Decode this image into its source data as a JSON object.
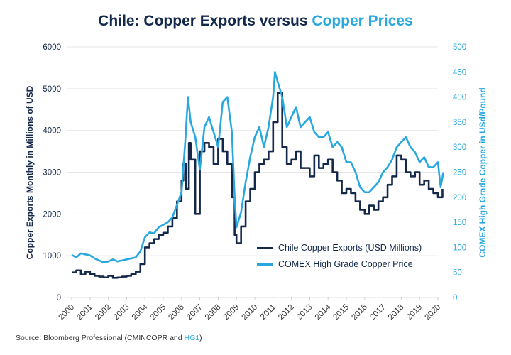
{
  "title": {
    "main": "Chile: Copper Exports versus ",
    "accent": "Copper Prices"
  },
  "source": {
    "prefix": "Source: Bloomberg Professional (CMINCOPR and ",
    "highlight": "HG1",
    "suffix": ")"
  },
  "colors": {
    "exports": "#14284b",
    "price": "#29a8e0",
    "grid": "#e6e6e6",
    "left_axis_text": "#14284b",
    "right_axis_text": "#29a8e0"
  },
  "chart_data": {
    "type": "line",
    "title": "Chile: Copper Exports versus Copper Prices",
    "xlabel": "",
    "ylabel_left": "Copper Exports Monthly in Millions of USD",
    "ylabel_right": "COMEX High Grade Copper in USd/Pound",
    "xlim": [
      2000,
      2020.3
    ],
    "ylim_left": [
      0,
      6000
    ],
    "ylim_right": [
      0,
      500
    ],
    "x_ticks": [
      "2000",
      "2001",
      "2002",
      "2003",
      "2004",
      "2005",
      "2006",
      "2007",
      "2008",
      "2009",
      "2010",
      "2011",
      "2012",
      "2013",
      "2014",
      "2015",
      "2016",
      "2017",
      "2018",
      "2019",
      "2020"
    ],
    "y_ticks_left": [
      "0",
      "1000",
      "2000",
      "3000",
      "4000",
      "5000",
      "6000"
    ],
    "y_ticks_right": [
      "0",
      "50",
      "100",
      "150",
      "200",
      "250",
      "300",
      "350",
      "400",
      "450",
      "500"
    ],
    "grid": true,
    "legend": "center-right",
    "series": [
      {
        "name": "Chile Copper Exports (USD Millions)",
        "axis": "left",
        "step": true,
        "x": [
          2000.0,
          2000.25,
          2000.5,
          2000.75,
          2001.0,
          2001.25,
          2001.5,
          2001.75,
          2002.0,
          2002.25,
          2002.5,
          2002.75,
          2003.0,
          2003.25,
          2003.5,
          2003.75,
          2004.0,
          2004.25,
          2004.5,
          2004.75,
          2005.0,
          2005.25,
          2005.5,
          2005.75,
          2006.0,
          2006.1,
          2006.25,
          2006.4,
          2006.5,
          2006.75,
          2007.0,
          2007.25,
          2007.5,
          2007.75,
          2008.0,
          2008.25,
          2008.5,
          2008.75,
          2008.9,
          2009.0,
          2009.25,
          2009.5,
          2009.75,
          2010.0,
          2010.25,
          2010.5,
          2010.75,
          2011.0,
          2011.25,
          2011.5,
          2011.75,
          2012.0,
          2012.25,
          2012.5,
          2012.75,
          2013.0,
          2013.25,
          2013.5,
          2013.75,
          2014.0,
          2014.25,
          2014.5,
          2014.75,
          2015.0,
          2015.25,
          2015.5,
          2015.75,
          2016.0,
          2016.25,
          2016.5,
          2016.75,
          2017.0,
          2017.25,
          2017.5,
          2017.75,
          2018.0,
          2018.25,
          2018.5,
          2018.75,
          2019.0,
          2019.25,
          2019.5,
          2019.75,
          2020.0,
          2020.25
        ],
        "values": [
          600,
          650,
          550,
          620,
          560,
          520,
          500,
          480,
          520,
          470,
          480,
          500,
          520,
          560,
          620,
          800,
          1200,
          1300,
          1400,
          1500,
          1550,
          1700,
          1900,
          2300,
          2800,
          3200,
          2600,
          3700,
          3300,
          2000,
          3500,
          3700,
          3600,
          3200,
          3800,
          3500,
          3200,
          2400,
          1500,
          1300,
          1700,
          2300,
          2600,
          3000,
          3200,
          3300,
          3500,
          4200,
          4900,
          3600,
          3200,
          3300,
          3500,
          3100,
          3100,
          2900,
          3400,
          3100,
          3200,
          3300,
          3000,
          2800,
          2500,
          2600,
          2500,
          2300,
          2100,
          2000,
          2200,
          2100,
          2300,
          2400,
          2700,
          2900,
          3400,
          3300,
          3000,
          2900,
          3000,
          2700,
          2800,
          2600,
          2500,
          2400,
          2600
        ]
      },
      {
        "name": "COMEX High Grade Copper Price",
        "axis": "right",
        "step": false,
        "x": [
          2000.0,
          2000.25,
          2000.5,
          2000.75,
          2001.0,
          2001.25,
          2001.5,
          2001.75,
          2002.0,
          2002.25,
          2002.5,
          2002.75,
          2003.0,
          2003.25,
          2003.5,
          2003.75,
          2004.0,
          2004.25,
          2004.5,
          2004.75,
          2005.0,
          2005.25,
          2005.5,
          2005.75,
          2006.0,
          2006.2,
          2006.35,
          2006.5,
          2006.75,
          2007.0,
          2007.25,
          2007.5,
          2007.75,
          2008.0,
          2008.25,
          2008.5,
          2008.75,
          2008.9,
          2009.0,
          2009.25,
          2009.5,
          2009.75,
          2010.0,
          2010.25,
          2010.5,
          2010.75,
          2011.0,
          2011.1,
          2011.25,
          2011.5,
          2011.75,
          2012.0,
          2012.25,
          2012.5,
          2012.75,
          2013.0,
          2013.25,
          2013.5,
          2013.75,
          2014.0,
          2014.25,
          2014.5,
          2014.75,
          2015.0,
          2015.25,
          2015.5,
          2015.75,
          2016.0,
          2016.25,
          2016.5,
          2016.75,
          2017.0,
          2017.25,
          2017.5,
          2017.75,
          2018.0,
          2018.25,
          2018.5,
          2018.75,
          2019.0,
          2019.25,
          2019.5,
          2019.75,
          2020.0,
          2020.15,
          2020.3
        ],
        "values": [
          85,
          80,
          88,
          86,
          84,
          78,
          74,
          70,
          72,
          76,
          72,
          74,
          76,
          78,
          80,
          92,
          120,
          130,
          128,
          140,
          145,
          150,
          160,
          185,
          210,
          310,
          400,
          350,
          320,
          255,
          340,
          360,
          330,
          300,
          390,
          400,
          330,
          200,
          140,
          170,
          230,
          280,
          320,
          340,
          300,
          340,
          400,
          450,
          430,
          400,
          340,
          360,
          380,
          340,
          350,
          360,
          330,
          320,
          320,
          330,
          300,
          310,
          300,
          270,
          270,
          250,
          220,
          210,
          210,
          220,
          230,
          250,
          260,
          275,
          300,
          310,
          320,
          300,
          290,
          270,
          280,
          260,
          260,
          270,
          220,
          250
        ]
      }
    ]
  }
}
